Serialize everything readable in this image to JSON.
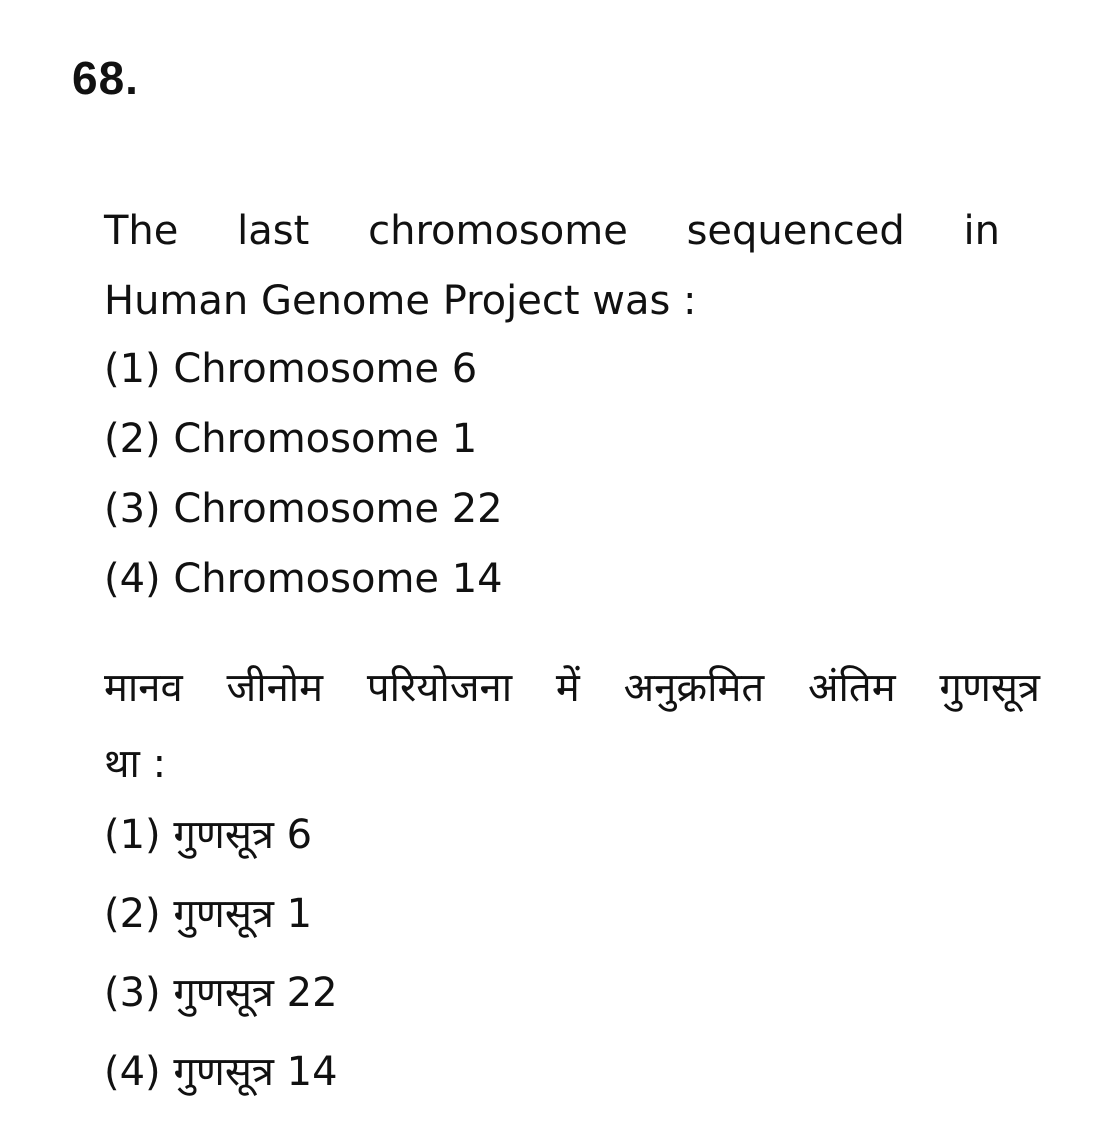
{
  "question_number": "68.",
  "english": {
    "stem_line1": [
      "The",
      "last",
      "chromosome",
      "sequenced",
      "in"
    ],
    "stem_line2": "Human Genome Project was :",
    "options": [
      "(1) Chromosome 6",
      "(2) Chromosome 1",
      "(3) Chromosome 22",
      "(4) Chromosome 14"
    ]
  },
  "hindi": {
    "stem_line1": [
      "मानव",
      "जीनोम",
      "परियोजना",
      "में",
      "अनुक्रमित",
      "अंतिम",
      "गुणसूत्र"
    ],
    "stem_line2": "था :",
    "options": [
      "(1) गुणसूत्र 6",
      "(2) गुणसूत्र 1",
      "(3) गुणसूत्र 22",
      "(4) गुणसूत्र 14"
    ]
  }
}
